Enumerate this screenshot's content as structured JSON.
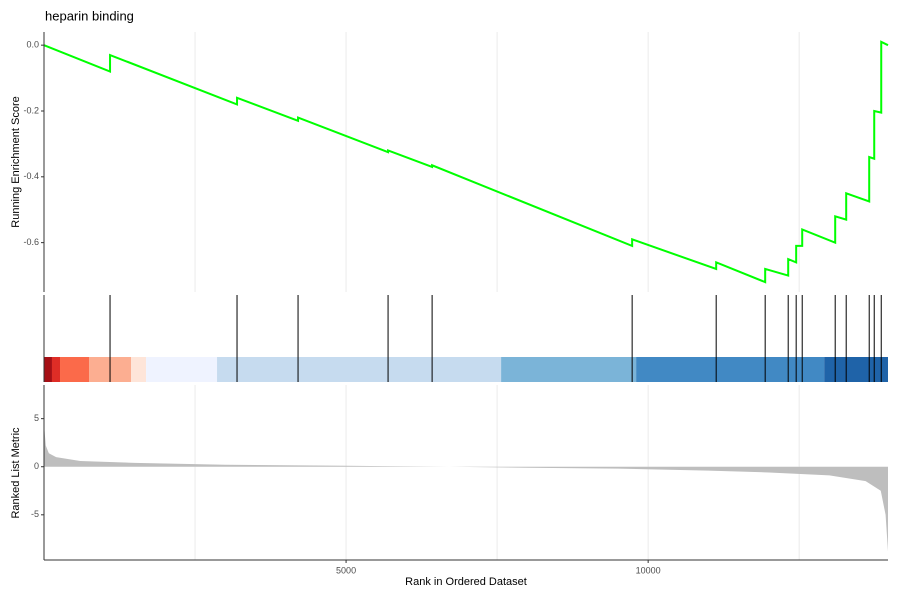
{
  "chart_data": [
    {
      "type": "line",
      "title": "heparin binding",
      "ylabel": "Running Enrichment Score",
      "color": "#00ff00",
      "x": [
        0,
        1093,
        1093,
        3195,
        3195,
        4205,
        4205,
        5695,
        5695,
        6424,
        6424,
        9735,
        9735,
        11126,
        11126,
        11937,
        11937,
        12318,
        12318,
        12450,
        12450,
        12550,
        12550,
        13096,
        13096,
        13278,
        13278,
        13659,
        13659,
        13742,
        13742,
        13858,
        13858,
        13970
      ],
      "values": [
        0,
        -0.08,
        -0.03,
        -0.18,
        -0.16,
        -0.23,
        -0.22,
        -0.325,
        -0.32,
        -0.37,
        -0.365,
        -0.61,
        -0.59,
        -0.68,
        -0.66,
        -0.72,
        -0.68,
        -0.7,
        -0.65,
        -0.66,
        -0.61,
        -0.61,
        -0.56,
        -0.6,
        -0.52,
        -0.53,
        -0.45,
        -0.475,
        -0.34,
        -0.345,
        -0.2,
        -0.205,
        0.01,
        0
      ],
      "xlim": [
        0,
        13970
      ],
      "ylim": [
        -0.75,
        0.04
      ],
      "yticks": [
        {
          "value": 0,
          "label": "0.0"
        },
        -0.2,
        -0.4,
        -0.6
      ],
      "grid_x": [
        2500,
        5000,
        7500,
        10000,
        12500
      ]
    },
    {
      "type": "hits",
      "xlim": [
        0,
        13970
      ],
      "hits": [
        1093,
        3195,
        4205,
        5695,
        6424,
        9735,
        11126,
        11937,
        12318,
        12450,
        12550,
        13096,
        13278,
        13659,
        13742,
        13858
      ],
      "band_edges": [
        0,
        132,
        265,
        745,
        1440,
        1689,
        2864,
        7566,
        9801,
        12914,
        13970
      ],
      "band_colors": [
        "#a50f15",
        "#de2d26",
        "#fb6a4a",
        "#fcae91",
        "#fee5d9",
        "#eff3ff",
        "#c6dbef",
        "#7bb4d8",
        "#4189c4",
        "#1f63a8"
      ]
    },
    {
      "type": "area",
      "ylabel": "Ranked List Metric",
      "xlabel": "Rank in Ordered Dataset",
      "color": "#bebebe",
      "x": [
        0,
        30,
        80,
        200,
        600,
        1500,
        3000,
        5000,
        6700,
        8000,
        9500,
        11000,
        12000,
        13000,
        13600,
        13850,
        13930,
        13970
      ],
      "values": [
        4.4,
        2.2,
        1.4,
        1.0,
        0.6,
        0.4,
        0.2,
        0.1,
        0,
        -0.1,
        -0.2,
        -0.4,
        -0.6,
        -0.9,
        -1.5,
        -2.5,
        -5,
        -8.8
      ],
      "xlim": [
        0,
        13970
      ],
      "ylim": [
        -9.7,
        8.5
      ],
      "yticks": [
        5,
        0,
        -5
      ],
      "xticks": [
        5000,
        10000
      ],
      "grid_x": [
        2500,
        5000,
        7500,
        10000,
        12500
      ]
    }
  ]
}
